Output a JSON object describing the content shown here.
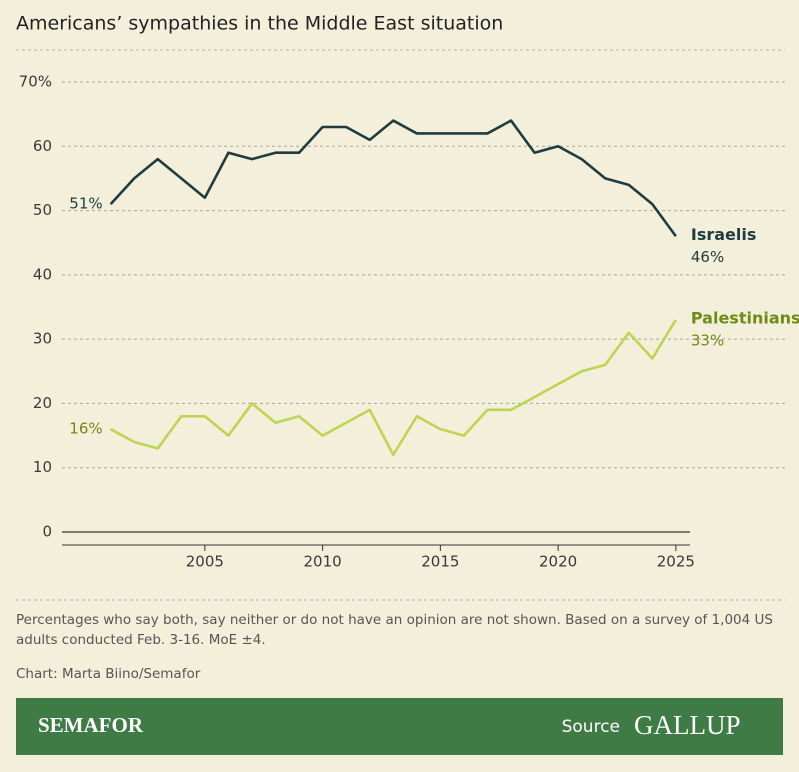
{
  "chart_data": {
    "type": "line",
    "title": "Americans’ sympathies in the Middle East situation",
    "x": [
      2001,
      2002,
      2003,
      2004,
      2005,
      2006,
      2007,
      2008,
      2009,
      2010,
      2011,
      2012,
      2013,
      2014,
      2015,
      2016,
      2017,
      2018,
      2019,
      2020,
      2021,
      2022,
      2023,
      2024,
      2025
    ],
    "series": [
      {
        "name": "Israelis",
        "color": "#1f3c3e",
        "label_color": "#1f3c3e",
        "values": [
          51,
          55,
          58,
          55,
          52,
          59,
          58,
          59,
          59,
          63,
          63,
          61,
          64,
          62,
          62,
          62,
          62,
          64,
          59,
          60,
          58,
          55,
          54,
          51,
          46
        ],
        "value_labels": [
          "51%",
          null,
          null,
          null,
          null,
          null,
          null,
          null,
          null,
          null,
          null,
          null,
          null,
          null,
          null,
          null,
          null,
          null,
          null,
          null,
          null,
          null,
          null,
          null,
          "46%"
        ]
      },
      {
        "name": "Palestinians",
        "color": "#bcd653",
        "label_color": "#6f8a16",
        "values": [
          16,
          14,
          13,
          18,
          18,
          15,
          20,
          17,
          18,
          15,
          17,
          19,
          12,
          18,
          16,
          15,
          19,
          19,
          21,
          23,
          25,
          26,
          31,
          27,
          33
        ],
        "value_labels": [
          "16%",
          null,
          null,
          null,
          null,
          null,
          null,
          null,
          null,
          null,
          null,
          null,
          null,
          null,
          null,
          null,
          null,
          null,
          null,
          null,
          null,
          null,
          null,
          null,
          "33%"
        ]
      }
    ],
    "xlim": [
      1998,
      2025.6
    ],
    "xticks": [
      2005,
      2010,
      2015,
      2020,
      2025
    ],
    "ylim": [
      0,
      70
    ],
    "yticks": [
      0,
      10,
      20,
      30,
      40,
      50,
      60,
      {
        "value": 70,
        "label": "70%"
      }
    ],
    "grid": true,
    "note": "Percentages who say both, say neither or do not have an opinion are not shown. Based on a survey of 1,004 US adults conducted Feb. 3-16. MoE ±4.",
    "credit": "Chart: Marta Biino/Semafor"
  },
  "footer": {
    "brand": "SEMAFOR",
    "source_label": "Source",
    "source": "GALLUP"
  }
}
